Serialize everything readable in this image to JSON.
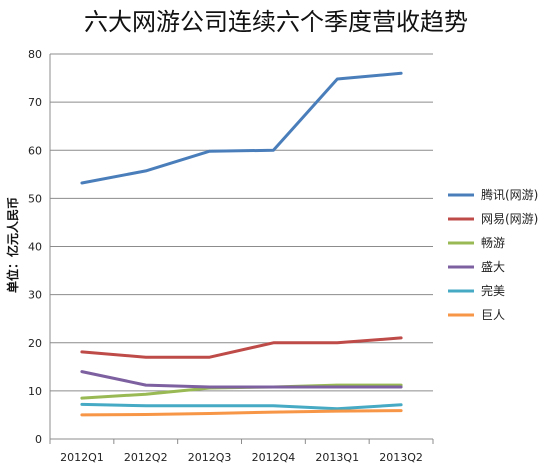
{
  "chart_data": {
    "type": "line",
    "title": "六大网游公司连续六个季度营收趋势",
    "xlabel": "",
    "ylabel": "单位：亿元人民币",
    "categories": [
      "2012Q1",
      "2012Q2",
      "2012Q3",
      "2012Q4",
      "2013Q1",
      "2013Q2"
    ],
    "ylim": [
      0,
      80
    ],
    "yticks": [
      0,
      10,
      20,
      30,
      40,
      50,
      60,
      70,
      80
    ],
    "grid": true,
    "legend_position": "right",
    "series": [
      {
        "name": "腾讯(网游)",
        "color": "#4A7EBB",
        "values": [
          53.2,
          55.7,
          59.8,
          60.0,
          74.8,
          76.0
        ]
      },
      {
        "name": "网易(网游)",
        "color": "#BE4B48",
        "values": [
          18.1,
          17.0,
          17.0,
          20.0,
          20.0,
          21.0
        ]
      },
      {
        "name": "畅游",
        "color": "#98B954",
        "values": [
          8.5,
          9.3,
          10.6,
          10.8,
          11.2,
          11.2
        ]
      },
      {
        "name": "盛大",
        "color": "#7D60A0",
        "values": [
          14.0,
          11.2,
          10.8,
          10.8,
          10.8,
          10.8
        ]
      },
      {
        "name": "完美",
        "color": "#46AAC5",
        "values": [
          7.2,
          6.9,
          6.9,
          6.9,
          6.3,
          7.1
        ]
      },
      {
        "name": "巨人",
        "color": "#F79646",
        "values": [
          5.0,
          5.1,
          5.3,
          5.6,
          5.8,
          5.9
        ]
      }
    ]
  }
}
